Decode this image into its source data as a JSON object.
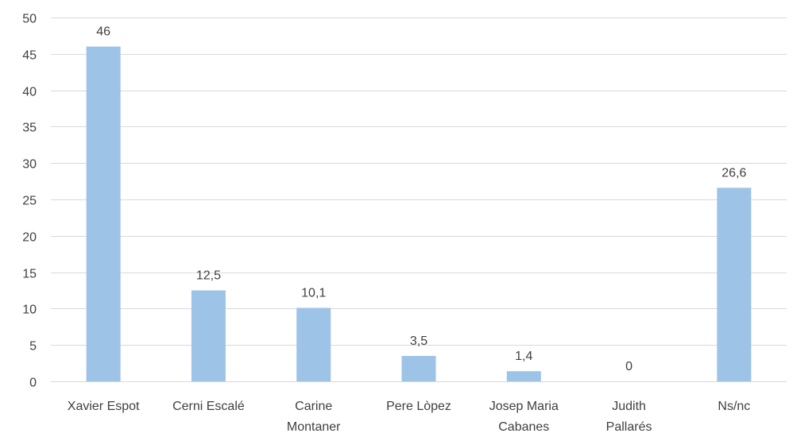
{
  "chart_data": {
    "type": "bar",
    "categories": [
      [
        "Xavier Espot"
      ],
      [
        "Cerni Escalé"
      ],
      [
        "Carine",
        "Montaner"
      ],
      [
        "Pere Lòpez"
      ],
      [
        "Josep Maria",
        "Cabanes"
      ],
      [
        "Judith",
        "Pallarés"
      ],
      [
        "Ns/nc"
      ]
    ],
    "values": [
      46,
      12.5,
      10.1,
      3.5,
      1.4,
      0,
      26.6
    ],
    "value_labels": [
      "46",
      "12,5",
      "10,1",
      "3,5",
      "1,4",
      "0",
      "26,6"
    ],
    "ylim": [
      0,
      50
    ],
    "yticks": [
      0,
      5,
      10,
      15,
      20,
      25,
      30,
      35,
      40,
      45,
      50
    ],
    "grid": true,
    "bar_color": "#9dc3e6",
    "title": "",
    "xlabel": "",
    "ylabel": ""
  }
}
